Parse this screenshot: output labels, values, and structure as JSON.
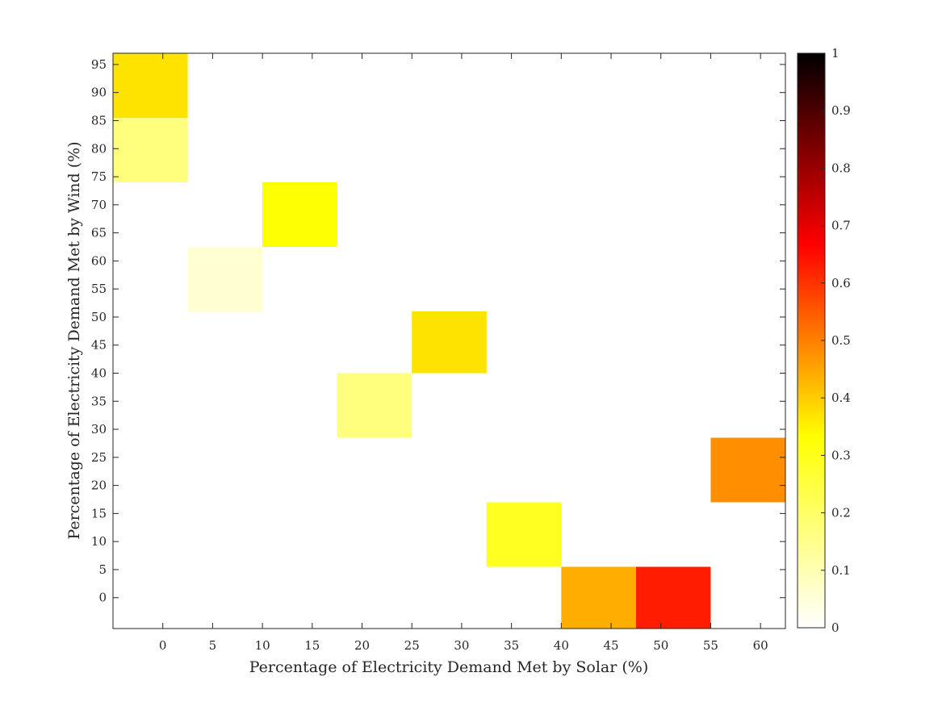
{
  "chart_data": {
    "type": "heatmap",
    "title": "",
    "xlabel": "Percentage of Electricity Demand Met by Solar (%)",
    "ylabel": "Percentage of Electricity Demand Met by Wind (%)",
    "xlim": [
      -5,
      62.5
    ],
    "ylim": [
      -5.5,
      97
    ],
    "x_ticks": [
      0,
      5,
      10,
      15,
      20,
      25,
      30,
      35,
      40,
      45,
      50,
      55,
      60
    ],
    "y_ticks": [
      0,
      5,
      10,
      15,
      20,
      25,
      30,
      35,
      40,
      45,
      50,
      55,
      60,
      65,
      70,
      75,
      80,
      85,
      90,
      95
    ],
    "colormap": "hot (reversed)",
    "colorbar": {
      "range": [
        0,
        1
      ],
      "ticks": [
        0,
        0.1,
        0.2,
        0.3,
        0.4,
        0.5,
        0.6,
        0.7,
        0.8,
        0.9,
        1
      ],
      "tick_labels": [
        "0",
        "0.1",
        "0.2",
        "0.3",
        "0.4",
        "0.5",
        "0.6",
        "0.7",
        "0.8",
        "0.9",
        "1"
      ]
    },
    "grid": false,
    "cells": [
      {
        "x": [
          -5,
          2.5
        ],
        "y": [
          85.5,
          97
        ],
        "value": 0.37
      },
      {
        "x": [
          -5,
          2.5
        ],
        "y": [
          74,
          85.5
        ],
        "value": 0.17
      },
      {
        "x": [
          2.5,
          10
        ],
        "y": [
          51,
          62.5
        ],
        "value": 0.06
      },
      {
        "x": [
          10,
          17.5
        ],
        "y": [
          62.5,
          74
        ],
        "value": 0.33
      },
      {
        "x": [
          17.5,
          25
        ],
        "y": [
          28.5,
          40
        ],
        "value": 0.17
      },
      {
        "x": [
          25,
          32.5
        ],
        "y": [
          40,
          51
        ],
        "value": 0.37
      },
      {
        "x": [
          32.5,
          40
        ],
        "y": [
          5.5,
          17
        ],
        "value": 0.29
      },
      {
        "x": [
          40,
          47.5
        ],
        "y": [
          -5.5,
          5.5
        ],
        "value": 0.44
      },
      {
        "x": [
          47.5,
          55
        ],
        "y": [
          -5.5,
          5.5
        ],
        "value": 0.63
      },
      {
        "x": [
          55,
          62.5
        ],
        "y": [
          17,
          28.5
        ],
        "value": 0.48
      }
    ]
  }
}
